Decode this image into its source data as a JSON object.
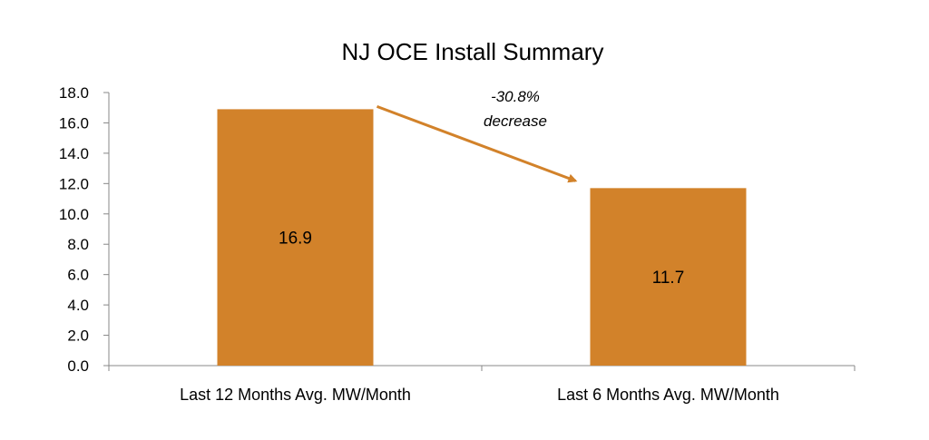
{
  "chart_data": {
    "type": "bar",
    "title": "NJ OCE Install Summary",
    "categories": [
      "Last 12 Months Avg. MW/Month",
      "Last 6 Months Avg. MW/Month"
    ],
    "values": [
      16.9,
      11.7
    ],
    "data_labels": [
      "16.9",
      "11.7"
    ],
    "ylim": [
      0,
      18
    ],
    "yticks": [
      "0.0",
      "2.0",
      "4.0",
      "6.0",
      "8.0",
      "10.0",
      "12.0",
      "14.0",
      "16.0",
      "18.0"
    ],
    "xlabel": "",
    "ylabel": "",
    "grid": false,
    "legend": "none",
    "bar_color": "#D2822A",
    "annotation": {
      "line1": "-30.8%",
      "line2": "decrease",
      "arrow_color": "#D2822A"
    }
  }
}
